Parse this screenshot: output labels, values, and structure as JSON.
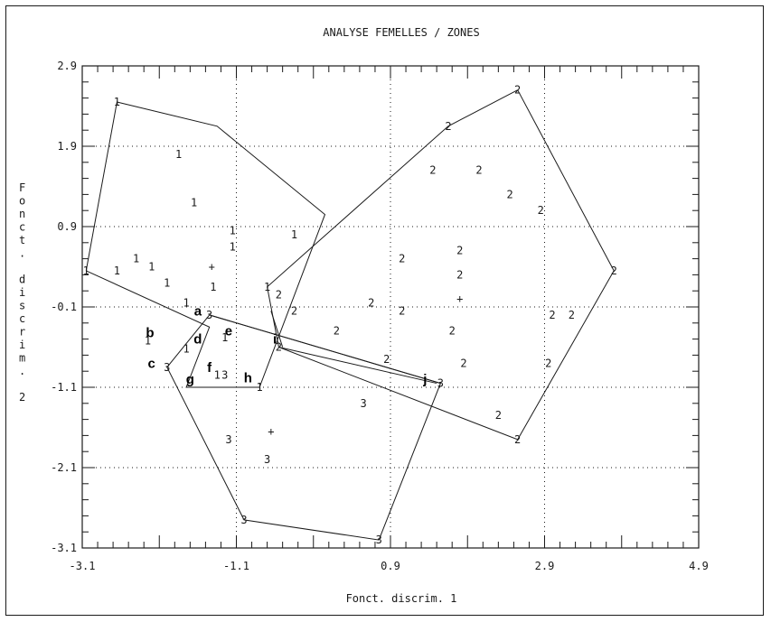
{
  "chart_data": {
    "type": "scatter",
    "title": "ANALYSE FEMELLES / ZONES",
    "xlabel": "Fonct. discrim. 1",
    "ylabel": "Fonct. discrim. 2",
    "xlim": [
      -3.1,
      4.9
    ],
    "ylim": [
      -3.1,
      2.9
    ],
    "x_ticks": [
      "-3.1",
      "-1.1",
      "0.9",
      "2.9",
      "4.9"
    ],
    "y_ticks": [
      "2.9",
      "1.9",
      "0.9",
      "-0.1",
      "-1.1",
      "-2.1",
      "-3.1"
    ],
    "grid": "dotted",
    "groups": [
      {
        "name": "1",
        "points": [
          [
            -2.65,
            2.45
          ],
          [
            -1.85,
            1.8
          ],
          [
            -1.65,
            1.2
          ],
          [
            -1.15,
            0.85
          ],
          [
            -1.15,
            0.65
          ],
          [
            -0.35,
            0.8
          ],
          [
            -3.05,
            0.35
          ],
          [
            -2.65,
            0.35
          ],
          [
            -2.4,
            0.5
          ],
          [
            -2.2,
            0.4
          ],
          [
            -2.0,
            0.2
          ],
          [
            -1.75,
            -0.05
          ],
          [
            -1.4,
            0.15
          ],
          [
            -0.7,
            0.15
          ],
          [
            -2.25,
            -0.52
          ],
          [
            -1.75,
            -0.62
          ],
          [
            -1.35,
            -0.95
          ],
          [
            -1.25,
            -0.48
          ],
          [
            -0.8,
            -1.1
          ]
        ],
        "centroid": [
          -1.42,
          0.4
        ],
        "hull": [
          [
            -3.05,
            0.35
          ],
          [
            -2.65,
            2.45
          ],
          [
            -1.35,
            2.15
          ],
          [
            0.05,
            1.05
          ],
          [
            -0.8,
            -1.1
          ],
          [
            -1.75,
            -1.1
          ],
          [
            -1.45,
            -0.35
          ],
          [
            -3.05,
            0.35
          ]
        ]
      },
      {
        "name": "2",
        "points": [
          [
            2.55,
            2.6
          ],
          [
            1.65,
            2.15
          ],
          [
            1.45,
            1.6
          ],
          [
            2.05,
            1.6
          ],
          [
            2.45,
            1.3
          ],
          [
            2.85,
            1.1
          ],
          [
            3.8,
            0.35
          ],
          [
            1.05,
            0.5
          ],
          [
            1.8,
            0.6
          ],
          [
            1.8,
            0.3
          ],
          [
            -0.55,
            0.05
          ],
          [
            0.65,
            -0.05
          ],
          [
            1.05,
            -0.15
          ],
          [
            -0.35,
            -0.15
          ],
          [
            0.2,
            -0.4
          ],
          [
            1.7,
            -0.4
          ],
          [
            3.0,
            -0.2
          ],
          [
            3.25,
            -0.2
          ],
          [
            -0.55,
            -0.6
          ],
          [
            0.85,
            -0.75
          ],
          [
            1.85,
            -0.8
          ],
          [
            2.95,
            -0.8
          ],
          [
            2.3,
            -1.45
          ],
          [
            2.55,
            -1.75
          ]
        ],
        "centroid": [
          1.8,
          0.0
        ],
        "hull": [
          [
            2.55,
            2.6
          ],
          [
            3.8,
            0.35
          ],
          [
            2.55,
            -1.75
          ],
          [
            -0.55,
            -0.6
          ],
          [
            -0.7,
            0.15
          ],
          [
            1.65,
            2.15
          ],
          [
            2.55,
            2.6
          ]
        ]
      },
      {
        "name": "3",
        "points": [
          [
            -1.45,
            -0.2
          ],
          [
            -2.0,
            -0.85
          ],
          [
            -1.25,
            -0.95
          ],
          [
            1.55,
            -1.05
          ],
          [
            0.55,
            -1.3
          ],
          [
            -1.2,
            -1.75
          ],
          [
            -0.7,
            -2.0
          ],
          [
            -1.0,
            -2.75
          ],
          [
            0.75,
            -3.0
          ]
        ],
        "centroid": [
          -0.65,
          -1.65
        ],
        "hull": [
          [
            -1.45,
            -0.2
          ],
          [
            -2.0,
            -0.85
          ],
          [
            -1.0,
            -2.75
          ],
          [
            0.75,
            -3.0
          ],
          [
            1.55,
            -1.05
          ],
          [
            -1.45,
            -0.2
          ]
        ]
      }
    ],
    "letter_labels": [
      {
        "text": "a",
        "x": -1.6,
        "y": -0.15
      },
      {
        "text": "b",
        "x": -2.22,
        "y": -0.42
      },
      {
        "text": "c",
        "x": -2.2,
        "y": -0.8
      },
      {
        "text": "d",
        "x": -1.6,
        "y": -0.5
      },
      {
        "text": "e",
        "x": -1.2,
        "y": -0.4
      },
      {
        "text": "f",
        "x": -1.45,
        "y": -0.85
      },
      {
        "text": "g",
        "x": -1.7,
        "y": -1.0
      },
      {
        "text": "h",
        "x": -0.95,
        "y": -0.98
      },
      {
        "text": "i",
        "x": -0.6,
        "y": -0.5
      },
      {
        "text": "j",
        "x": 1.35,
        "y": -1.0
      }
    ],
    "connections": [
      {
        "from": [
          -1.45,
          -0.2
        ],
        "to": [
          1.55,
          -1.05
        ]
      },
      {
        "from": [
          -0.65,
          -0.15
        ],
        "to": [
          -0.5,
          -0.6
        ]
      },
      {
        "from": [
          -0.55,
          -0.6
        ],
        "to": [
          1.5,
          -1.05
        ]
      }
    ]
  }
}
